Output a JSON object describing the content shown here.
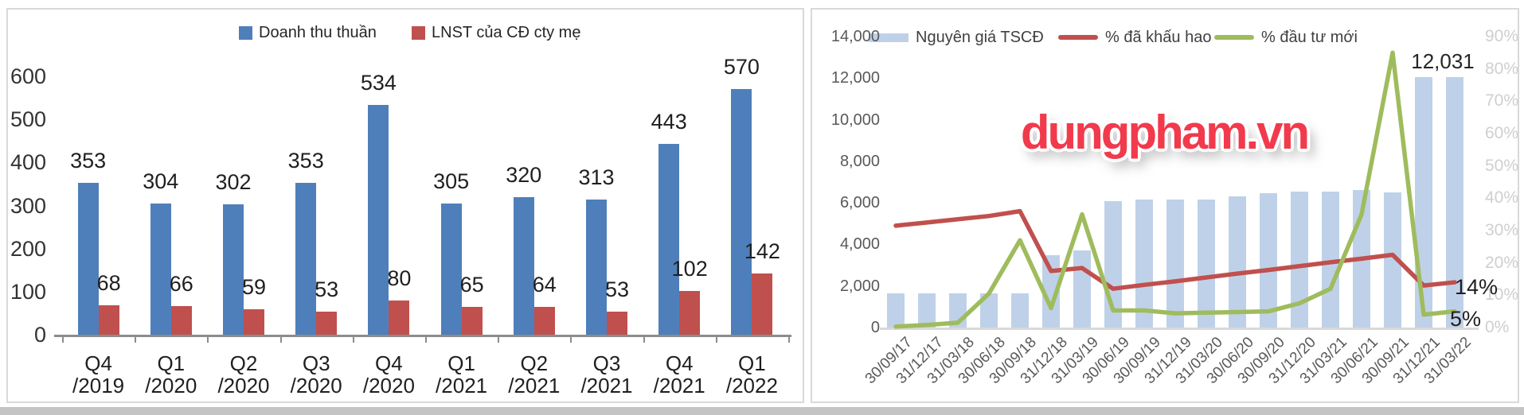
{
  "chart_data": [
    {
      "type": "bar",
      "title": "",
      "legend_position": "top",
      "grid": false,
      "data_labels": true,
      "ylim": [
        0,
        600
      ],
      "ytick_step": 100,
      "yticks": [
        "0",
        "100",
        "200",
        "300",
        "400",
        "500",
        "600"
      ],
      "categories": [
        "Q4/2019",
        "Q1/2020",
        "Q2/2020",
        "Q3/2020",
        "Q4/2020",
        "Q1/2021",
        "Q2/2021",
        "Q3/2021",
        "Q4/2021",
        "Q1/2022"
      ],
      "categories_two_line": [
        [
          "Q4",
          "/2019"
        ],
        [
          "Q1",
          "/2020"
        ],
        [
          "Q2",
          "/2020"
        ],
        [
          "Q3",
          "/2020"
        ],
        [
          "Q4",
          "/2020"
        ],
        [
          "Q1",
          "/2021"
        ],
        [
          "Q2",
          "/2021"
        ],
        [
          "Q3",
          "/2021"
        ],
        [
          "Q4",
          "/2021"
        ],
        [
          "Q1",
          "/2022"
        ]
      ],
      "series": [
        {
          "name": "Doanh thu thuần",
          "type": "bar",
          "color": "#4E7FBA",
          "values": [
            353,
            304,
            302,
            353,
            534,
            305,
            320,
            313,
            443,
            570
          ]
        },
        {
          "name": "LNST của CĐ cty mẹ",
          "type": "bar",
          "color": "#C0504D",
          "values": [
            68,
            66,
            59,
            53,
            80,
            65,
            64,
            53,
            102,
            142
          ]
        }
      ]
    },
    {
      "type": "combo",
      "title": "",
      "legend_position": "top",
      "grid": false,
      "watermark": "dungpham.vn",
      "left_ylim": [
        0,
        14000
      ],
      "left_yticks": [
        "0",
        "2,000",
        "4,000",
        "6,000",
        "8,000",
        "10,000",
        "12,000",
        "14,000"
      ],
      "right_ylim": [
        0,
        90
      ],
      "right_yticks": [
        "0%",
        "10%",
        "20%",
        "30%",
        "40%",
        "50%",
        "60%",
        "70%",
        "80%",
        "90%"
      ],
      "categories": [
        "30/09/17",
        "31/12/17",
        "31/03/18",
        "30/06/18",
        "30/09/18",
        "31/12/18",
        "31/03/19",
        "30/06/19",
        "30/09/19",
        "31/12/19",
        "31/03/20",
        "30/06/20",
        "30/09/20",
        "31/12/20",
        "31/03/21",
        "30/06/21",
        "30/09/21",
        "31/12/21",
        "31/03/22"
      ],
      "series": [
        {
          "name": "Nguyên giá TSCĐ",
          "type": "bar",
          "axis": "left",
          "color": "#BFD1E9",
          "values": [
            1650,
            1650,
            1650,
            1650,
            1650,
            3500,
            3700,
            6100,
            6150,
            6150,
            6150,
            6300,
            6450,
            6550,
            6550,
            6600,
            6500,
            12031,
            12031
          ]
        },
        {
          "name": "% đã khấu hao",
          "type": "line",
          "axis": "right",
          "color": "#C0504D",
          "values_pct": [
            31.5,
            32.5,
            33.5,
            34.5,
            36,
            17.5,
            18.4,
            12,
            13.2,
            14.3,
            15.5,
            16.7,
            17.8,
            19,
            20.2,
            21.3,
            22.5,
            13,
            14
          ]
        },
        {
          "name": "% đầu tư mới",
          "type": "line",
          "axis": "right",
          "color": "#9FBC5D",
          "values_pct": [
            0.3,
            0.8,
            1.5,
            10.5,
            27,
            6,
            35,
            5.3,
            5.3,
            4.4,
            4.6,
            4.8,
            5,
            7.5,
            12,
            35,
            85,
            4,
            5
          ]
        }
      ],
      "annotations": {
        "last_bar_label": "12,031",
        "red_end_label": "14%",
        "green_end_label": "5%"
      }
    }
  ],
  "colors": {
    "blue_bar": "#4E7FBA",
    "red_bar": "#C0504D",
    "light_blue_bar": "#BFD1E9",
    "red_line": "#C0504D",
    "green_line": "#9FBC5D",
    "watermark_red": "#F13A4C",
    "panel_border": "#D9D9D9"
  }
}
